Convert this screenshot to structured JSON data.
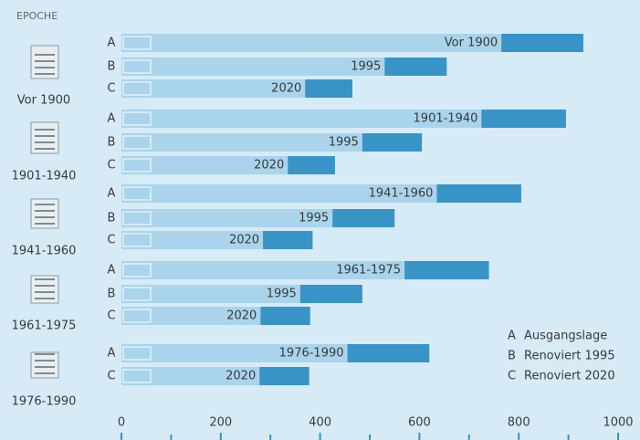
{
  "header": "EPOCHE",
  "chart_data": {
    "type": "bar",
    "orientation": "horizontal",
    "stacked": true,
    "colors": [
      "#a9d4ec",
      "#3893c7"
    ],
    "groups": [
      {
        "label": "Vor 1900",
        "bars": [
          {
            "letter": "A",
            "text": "Vor 1900",
            "values": [
              765,
              165
            ]
          },
          {
            "letter": "B",
            "text": "1995",
            "values": [
              530,
              125
            ]
          },
          {
            "letter": "C",
            "text": "2020",
            "values": [
              370,
              95
            ]
          }
        ]
      },
      {
        "label": "1901-1940",
        "bars": [
          {
            "letter": "A",
            "text": "1901-1940",
            "values": [
              725,
              170
            ]
          },
          {
            "letter": "B",
            "text": "1995",
            "values": [
              485,
              120
            ]
          },
          {
            "letter": "C",
            "text": "2020",
            "values": [
              335,
              95
            ]
          }
        ]
      },
      {
        "label": "1941-1960",
        "bars": [
          {
            "letter": "A",
            "text": "1941-1960",
            "values": [
              635,
              170
            ]
          },
          {
            "letter": "B",
            "text": "1995",
            "values": [
              425,
              125
            ]
          },
          {
            "letter": "C",
            "text": "2020",
            "values": [
              285,
              100
            ]
          }
        ]
      },
      {
        "label": "1961-1975",
        "bars": [
          {
            "letter": "A",
            "text": "1961-1975",
            "values": [
              570,
              170
            ]
          },
          {
            "letter": "B",
            "text": "1995",
            "values": [
              360,
              125
            ]
          },
          {
            "letter": "C",
            "text": "2020",
            "values": [
              280,
              100
            ]
          }
        ]
      },
      {
        "label": "1976-1990",
        "bars": [
          {
            "letter": "A",
            "text": "1976-1990",
            "values": [
              455,
              165
            ]
          },
          {
            "letter": "C",
            "text": "2020",
            "values": [
              278,
              100
            ]
          }
        ]
      }
    ],
    "xlim": [
      0,
      1000
    ],
    "xticks": [
      0,
      200,
      400,
      600,
      800,
      1000
    ],
    "minor_xticks": [
      100,
      300,
      500,
      700,
      900
    ],
    "legend": [
      {
        "letter": "A",
        "text": "Ausgangslage"
      },
      {
        "letter": "B",
        "text": "Renoviert 1995"
      },
      {
        "letter": "C",
        "text": "Renoviert 2020"
      }
    ]
  }
}
